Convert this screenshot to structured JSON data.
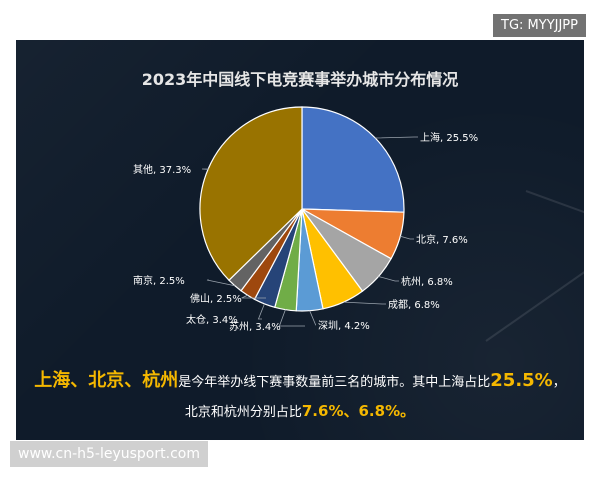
{
  "chart_data": {
    "type": "pie",
    "title": "2023年中国线下电竞赛事举办城市分布情况",
    "slices": [
      {
        "label": "上海, 25.5%",
        "value": 25.5,
        "color": "#4472c4"
      },
      {
        "label": "北京, 7.6%",
        "value": 7.6,
        "color": "#ed7d31"
      },
      {
        "label": "杭州, 6.8%",
        "value": 6.8,
        "color": "#a5a5a5"
      },
      {
        "label": "成都, 6.8%",
        "value": 6.8,
        "color": "#ffc000"
      },
      {
        "label": "深圳, 4.2%",
        "value": 4.2,
        "color": "#5b9bd5"
      },
      {
        "label": "苏州, 3.4%",
        "value": 3.4,
        "color": "#70ad47"
      },
      {
        "label": "太仓, 3.4%",
        "value": 3.4,
        "color": "#264478"
      },
      {
        "label": "佛山, 2.5%",
        "value": 2.5,
        "color": "#9e480e"
      },
      {
        "label": "南京, 2.5%",
        "value": 2.5,
        "color": "#636363"
      },
      {
        "label": "其他, 37.3%",
        "value": 37.3,
        "color": "#997300"
      }
    ],
    "label_color": "#ffffff",
    "leader_color": "#9aa3ad"
  },
  "summary": {
    "line1_cities": [
      {
        "name": "上海",
        "sep": "、"
      },
      {
        "name": "北京",
        "sep": "、"
      },
      {
        "name": "杭州",
        "sep": ""
      }
    ],
    "line1_mid": "是今年举办线下赛事数量前三名的城市。其中上海占比",
    "line1_pct": "25.5%",
    "line1_end": "，",
    "line2_start": "北京和杭州分别占比",
    "line2_pct1": "7.6%",
    "line2_sep": "、",
    "line2_pct2": "6.8%",
    "line2_end": "。"
  },
  "watermark_tg": "TG: MYYJJPP",
  "watermark_site": "www.cn-h5-leyusport.com",
  "colors": {
    "panel": "#0f1b2a",
    "highlight": "#f5b800"
  }
}
